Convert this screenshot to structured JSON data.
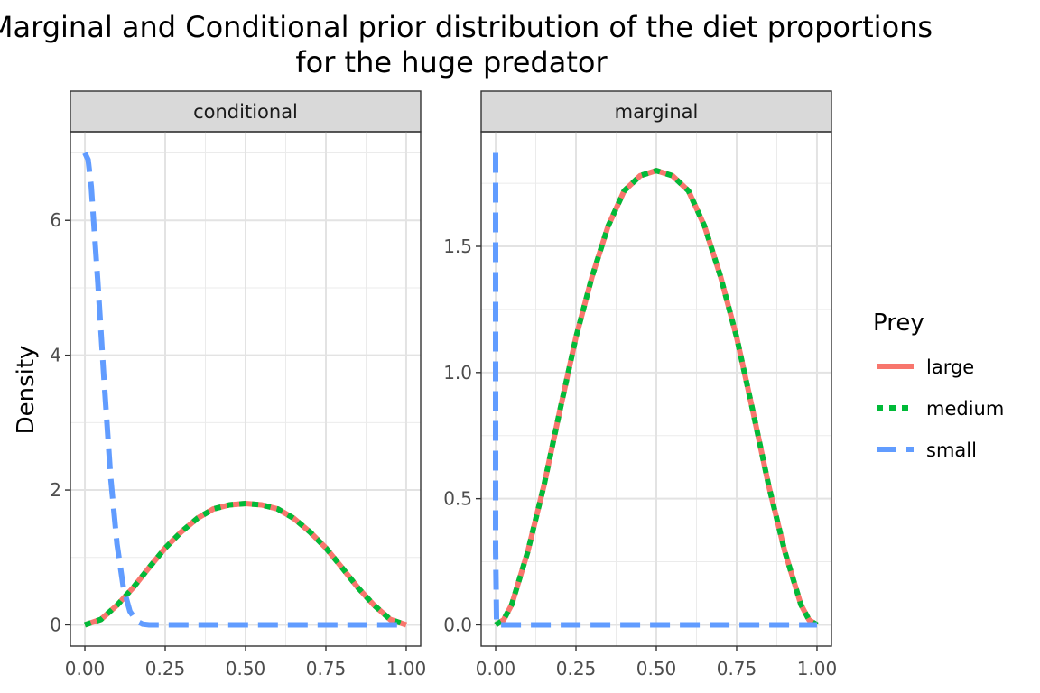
{
  "chart_data": {
    "type": "line",
    "title_line1": "Marginal and Conditional prior distribution of the diet proportions",
    "title_line2": "for the huge predator",
    "ylabel": "Density",
    "legend": {
      "title": "Prey",
      "position": "right",
      "entries": [
        {
          "name": "large",
          "color": "#F8766D",
          "dash": "solid"
        },
        {
          "name": "medium",
          "color": "#00BA38",
          "dash": "dotted"
        },
        {
          "name": "small",
          "color": "#619CFF",
          "dash": "dashed"
        }
      ]
    },
    "panels": [
      {
        "strip": "conditional",
        "xlim": [
          0,
          1
        ],
        "ylim": [
          0,
          7
        ],
        "x_ticks": [
          "0.00",
          "0.25",
          "0.50",
          "0.75",
          "1.00"
        ],
        "y_ticks": [
          0,
          2,
          4,
          6
        ],
        "y_tick_labels": [
          "0",
          "2",
          "4",
          "6"
        ],
        "series": [
          {
            "name": "large",
            "x": [
              0,
              0.05,
              0.1,
              0.15,
              0.2,
              0.25,
              0.3,
              0.35,
              0.4,
              0.45,
              0.5,
              0.55,
              0.6,
              0.65,
              0.7,
              0.75,
              0.8,
              0.85,
              0.9,
              0.95,
              1
            ],
            "y": [
              0,
              0.08,
              0.29,
              0.55,
              0.85,
              1.14,
              1.38,
              1.58,
              1.72,
              1.78,
              1.8,
              1.78,
              1.72,
              1.58,
              1.38,
              1.14,
              0.85,
              0.55,
              0.29,
              0.08,
              0
            ]
          },
          {
            "name": "medium",
            "x": [
              0,
              0.05,
              0.1,
              0.15,
              0.2,
              0.25,
              0.3,
              0.35,
              0.4,
              0.45,
              0.5,
              0.55,
              0.6,
              0.65,
              0.7,
              0.75,
              0.8,
              0.85,
              0.9,
              0.95,
              1
            ],
            "y": [
              0,
              0.08,
              0.29,
              0.55,
              0.85,
              1.14,
              1.38,
              1.58,
              1.72,
              1.78,
              1.8,
              1.78,
              1.72,
              1.58,
              1.38,
              1.14,
              0.85,
              0.55,
              0.29,
              0.08,
              0
            ]
          },
          {
            "name": "small",
            "x": [
              0,
              0.01,
              0.02,
              0.04,
              0.06,
              0.08,
              0.1,
              0.12,
              0.14,
              0.16,
              0.18,
              0.2,
              0.25,
              0.3,
              0.5,
              0.75,
              1
            ],
            "y": [
              7,
              6.9,
              6.5,
              5.1,
              3.6,
              2.2,
              1.2,
              0.55,
              0.2,
              0.06,
              0.01,
              0,
              0,
              0,
              0,
              0,
              0
            ]
          }
        ]
      },
      {
        "strip": "marginal",
        "xlim": [
          0,
          1
        ],
        "ylim": [
          0,
          1.87
        ],
        "x_ticks": [
          "0.00",
          "0.25",
          "0.50",
          "0.75",
          "1.00"
        ],
        "y_ticks": [
          0,
          0.5,
          1,
          1.5
        ],
        "y_tick_labels": [
          "0.0",
          "0.5",
          "1.0",
          "1.5"
        ],
        "series": [
          {
            "name": "large",
            "x": [
              0,
              0.025,
              0.05,
              0.1,
              0.15,
              0.2,
              0.25,
              0.3,
              0.35,
              0.4,
              0.45,
              0.5,
              0.55,
              0.6,
              0.65,
              0.7,
              0.75,
              0.8,
              0.85,
              0.9,
              0.95,
              0.975,
              1
            ],
            "y": [
              0,
              0.02,
              0.08,
              0.29,
              0.55,
              0.85,
              1.14,
              1.38,
              1.58,
              1.72,
              1.78,
              1.8,
              1.78,
              1.72,
              1.58,
              1.38,
              1.14,
              0.85,
              0.55,
              0.29,
              0.08,
              0.02,
              0
            ]
          },
          {
            "name": "medium",
            "x": [
              0,
              0.025,
              0.05,
              0.1,
              0.15,
              0.2,
              0.25,
              0.3,
              0.35,
              0.4,
              0.45,
              0.5,
              0.55,
              0.6,
              0.65,
              0.7,
              0.75,
              0.8,
              0.85,
              0.9,
              0.95,
              0.975,
              1
            ],
            "y": [
              0,
              0.02,
              0.08,
              0.29,
              0.55,
              0.85,
              1.14,
              1.38,
              1.58,
              1.72,
              1.78,
              1.8,
              1.78,
              1.72,
              1.58,
              1.38,
              1.14,
              0.85,
              0.55,
              0.29,
              0.08,
              0.02,
              0
            ]
          },
          {
            "name": "small",
            "x": [
              0,
              0,
              0.003,
              0.01,
              0.25,
              0.5,
              0.75,
              1
            ],
            "y": [
              1.87,
              0.3,
              0,
              0,
              0,
              0,
              0,
              0
            ]
          }
        ]
      }
    ]
  }
}
